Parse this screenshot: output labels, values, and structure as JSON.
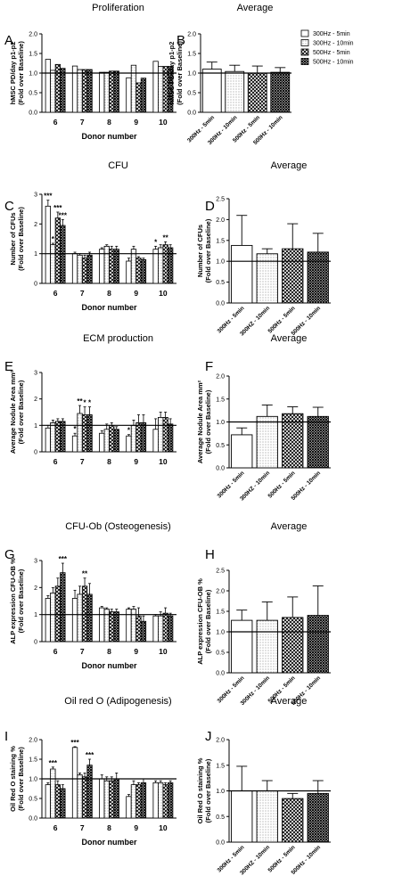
{
  "figure_title": "",
  "legend": [
    {
      "label": "300Hz - 5min",
      "pattern": "blank"
    },
    {
      "label": "300Hz - 10min",
      "pattern": "dots"
    },
    {
      "label": "500Hz - 5min",
      "pattern": "cross"
    },
    {
      "label": "500Hz - 10min",
      "pattern": "crossdense"
    }
  ],
  "chart_data": [
    {
      "panel": "A",
      "type": "bar",
      "title": "Proliferation",
      "ylabel": "hMSC PD/day p1-p2\n(Fold over Baseline)",
      "xlabel": "Donor number",
      "ylim": [
        0.0,
        2.0
      ],
      "yticks": [
        0.0,
        0.5,
        1.0,
        1.5,
        2.0
      ],
      "baseline": 1.0,
      "categories": [
        "6",
        "7",
        "8",
        "9",
        "10"
      ],
      "series": [
        {
          "name": "300Hz - 5min",
          "values": [
            1.35,
            1.18,
            1.02,
            0.88,
            1.3
          ],
          "errors": [
            0,
            0,
            0,
            0,
            0
          ]
        },
        {
          "name": "300Hz - 10min",
          "values": [
            1.07,
            1.09,
            1.02,
            1.2,
            1.17
          ],
          "errors": [
            0,
            0,
            0,
            0,
            0
          ]
        },
        {
          "name": "500Hz - 5min",
          "values": [
            1.22,
            1.09,
            1.05,
            0.75,
            1.17
          ],
          "errors": [
            0,
            0,
            0,
            0,
            0
          ]
        },
        {
          "name": "500Hz - 10min",
          "values": [
            1.12,
            1.09,
            1.05,
            0.87,
            1.17
          ],
          "errors": [
            0,
            0,
            0,
            0,
            0
          ]
        }
      ],
      "annotations": []
    },
    {
      "panel": "B",
      "type": "bar",
      "title": "Average",
      "ylabel": "hMSC PD/day p1-p2\n(Fold over Baseline)",
      "xlabel": "",
      "ylim": [
        0.0,
        2.0
      ],
      "yticks": [
        0.0,
        0.5,
        1.0,
        1.5,
        2.0
      ],
      "baseline": 1.0,
      "categories": [
        "300Hz - 5min",
        "300Hz - 10min",
        "500Hz - 5min",
        "500Hz - 10min"
      ],
      "values": [
        1.1,
        1.04,
        1.0,
        1.02
      ],
      "errors": [
        0.18,
        0.16,
        0.18,
        0.12
      ],
      "annotations": []
    },
    {
      "panel": "C",
      "type": "bar",
      "title": "CFU",
      "ylabel": "Number of CFUs\n(Fold over Baseline)",
      "xlabel": "Donor number",
      "ylim": [
        0,
        3
      ],
      "yticks": [
        0,
        1,
        2,
        3
      ],
      "baseline": 1.0,
      "categories": [
        "6",
        "7",
        "8",
        "9",
        "10"
      ],
      "series": [
        {
          "name": "300Hz - 5min",
          "values": [
            2.6,
            1.0,
            1.15,
            0.75,
            1.15
          ],
          "errors": [
            0.2,
            0.05,
            0.05,
            0.1,
            0.1
          ]
        },
        {
          "name": "300Hz - 10min",
          "values": [
            1.3,
            0.95,
            1.25,
            1.15,
            1.2
          ],
          "errors": [
            0.05,
            0.05,
            0.05,
            0.1,
            0.1
          ]
        },
        {
          "name": "500Hz - 5min",
          "values": [
            2.2,
            0.85,
            1.15,
            0.85,
            1.3
          ],
          "errors": [
            0.2,
            0.1,
            0.1,
            0.05,
            0.1
          ]
        },
        {
          "name": "500Hz - 10min",
          "values": [
            1.95,
            0.95,
            1.15,
            0.8,
            1.2
          ],
          "errors": [
            0.2,
            0.1,
            0.1,
            0.05,
            0.1
          ]
        }
      ],
      "annotations": [
        {
          "group": 0,
          "bar": 0,
          "text": "***"
        },
        {
          "group": 0,
          "bar": 1,
          "text": "*"
        },
        {
          "group": 0,
          "bar": 2,
          "text": "***"
        },
        {
          "group": 0,
          "bar": 3,
          "text": "***"
        },
        {
          "group": 4,
          "bar": 0,
          "text": "*"
        },
        {
          "group": 4,
          "bar": 2,
          "text": "**"
        }
      ]
    },
    {
      "panel": "D",
      "type": "bar",
      "title": "Average",
      "ylabel": "Number of CFUs\n(Fold over Baseline)",
      "xlabel": "",
      "ylim": [
        0.0,
        2.5
      ],
      "yticks": [
        0.0,
        0.5,
        1.0,
        1.5,
        2.0,
        2.5
      ],
      "baseline": 1.0,
      "categories": [
        "300Hz - 5min",
        "300HZ - 10min",
        "500Hz - 5min",
        "500Hz - 10min"
      ],
      "values": [
        1.38,
        1.18,
        1.3,
        1.22
      ],
      "errors": [
        0.72,
        0.12,
        0.6,
        0.45
      ],
      "annotations": []
    },
    {
      "panel": "E",
      "type": "bar",
      "title": "ECM production",
      "ylabel": "Average Nodule Area mm²\n(Fold over Baseline)",
      "xlabel": "",
      "ylim": [
        0,
        3
      ],
      "yticks": [
        0,
        1,
        2,
        3
      ],
      "baseline": 1.0,
      "categories": [
        "6",
        "7",
        "8",
        "9",
        "10"
      ],
      "series": [
        {
          "name": "300Hz - 5min",
          "values": [
            0.9,
            0.6,
            0.7,
            0.6,
            0.85
          ],
          "errors": [
            0.1,
            0.1,
            0.1,
            0.05,
            0.4
          ]
        },
        {
          "name": "300Hz - 10min",
          "values": [
            1.1,
            1.45,
            0.85,
            1.0,
            1.3
          ],
          "errors": [
            0.1,
            0.3,
            0.2,
            0.2,
            0.2
          ]
        },
        {
          "name": "500Hz - 5min",
          "values": [
            1.15,
            1.4,
            1.0,
            1.1,
            1.3
          ],
          "errors": [
            0.1,
            0.3,
            0.1,
            0.3,
            0.2
          ]
        },
        {
          "name": "500Hz - 10min",
          "values": [
            1.15,
            1.4,
            0.85,
            1.1,
            1.05
          ],
          "errors": [
            0.1,
            0.3,
            0.1,
            0.3,
            0.2
          ]
        }
      ],
      "annotations": [
        {
          "group": 1,
          "bar": 0,
          "text": "*"
        },
        {
          "group": 1,
          "bar": 1,
          "text": "**"
        },
        {
          "group": 1,
          "bar": 2,
          "text": "*"
        },
        {
          "group": 1,
          "bar": 3,
          "text": "*"
        },
        {
          "group": 3,
          "bar": 0,
          "text": "*"
        }
      ]
    },
    {
      "panel": "F",
      "type": "bar",
      "title": "Average",
      "ylabel": "Average Nodule Area mm²\n(Fold over Baseline)",
      "xlabel": "",
      "ylim": [
        0.0,
        2.0
      ],
      "yticks": [
        0.0,
        0.5,
        1.0,
        1.5,
        2.0
      ],
      "baseline": 1.0,
      "categories": [
        "300Hz - 5min",
        "300HZ - 10min",
        "500Hz - 5min",
        "500Hz - 10min"
      ],
      "values": [
        0.72,
        1.12,
        1.18,
        1.12
      ],
      "errors": [
        0.15,
        0.25,
        0.15,
        0.2
      ],
      "annotations": []
    },
    {
      "panel": "G",
      "type": "bar",
      "title": "CFU-Ob (Osteogenesis)",
      "ylabel": "ALP expression CFU-OB %\n(Fold over Baseline)",
      "xlabel": "Donor number",
      "ylim": [
        0,
        3
      ],
      "yticks": [
        0,
        1,
        2,
        3
      ],
      "baseline": 1.0,
      "categories": [
        "6",
        "7",
        "8",
        "9",
        "10"
      ],
      "series": [
        {
          "name": "300Hz - 5min",
          "values": [
            1.6,
            1.6,
            1.25,
            1.2,
            0.95
          ],
          "errors": [
            0.1,
            0.3,
            0.05,
            0.05,
            0.05
          ]
        },
        {
          "name": "300Hz - 10min",
          "values": [
            1.8,
            1.75,
            1.2,
            1.2,
            0.95
          ],
          "errors": [
            0.2,
            0.3,
            0.05,
            0.1,
            0.15
          ]
        },
        {
          "name": "500Hz - 5min",
          "values": [
            2.05,
            2.05,
            1.1,
            0.95,
            1.05
          ],
          "errors": [
            0.3,
            0.3,
            0.1,
            0.3,
            0.2
          ]
        },
        {
          "name": "500Hz - 10min",
          "values": [
            2.55,
            1.75,
            1.1,
            0.75,
            0.95
          ],
          "errors": [
            0.35,
            0.4,
            0.1,
            0.2,
            0.1
          ]
        }
      ],
      "annotations": [
        {
          "group": 0,
          "bar": 3,
          "text": "***"
        },
        {
          "group": 1,
          "bar": 2,
          "text": "**"
        }
      ]
    },
    {
      "panel": "H",
      "type": "bar",
      "title": "Average",
      "ylabel": "ALP expression CFU-OB %\n(Fold over Baseline)",
      "xlabel": "",
      "ylim": [
        0.0,
        2.5
      ],
      "yticks": [
        0.0,
        0.5,
        1.0,
        1.5,
        2.0,
        2.5
      ],
      "baseline": 1.0,
      "categories": [
        "300Hz - 5min",
        "300Hz - 10min",
        "500Hz - 5min",
        "500Hz - 10min"
      ],
      "values": [
        1.28,
        1.28,
        1.35,
        1.4
      ],
      "errors": [
        0.25,
        0.45,
        0.5,
        0.72
      ],
      "annotations": []
    },
    {
      "panel": "I",
      "type": "bar",
      "title": "Oil red O (Adipogenesis)",
      "ylabel": "Oil Red O staining %\n(Fold over Baseline)",
      "xlabel": "Donor number",
      "ylim": [
        0.0,
        2.0
      ],
      "yticks": [
        0.0,
        0.5,
        1.0,
        1.5,
        2.0
      ],
      "baseline": 1.0,
      "categories": [
        "6",
        "7",
        "8",
        "9",
        "10"
      ],
      "series": [
        {
          "name": "300Hz - 5min",
          "values": [
            0.85,
            1.8,
            1.0,
            0.55,
            0.9
          ],
          "errors": [
            0.05,
            0.02,
            0.1,
            0.05,
            0.05
          ]
        },
        {
          "name": "300Hz - 10min",
          "values": [
            1.25,
            1.1,
            0.95,
            0.85,
            0.9
          ],
          "errors": [
            0.05,
            0.05,
            0.1,
            0.1,
            0.05
          ]
        },
        {
          "name": "500Hz - 5min",
          "values": [
            0.85,
            1.05,
            0.95,
            0.85,
            0.85
          ],
          "errors": [
            0.1,
            0.1,
            0.1,
            0.05,
            0.05
          ]
        },
        {
          "name": "500Hz - 10min",
          "values": [
            0.75,
            1.35,
            1.0,
            0.9,
            0.9
          ],
          "errors": [
            0.1,
            0.15,
            0.15,
            0.1,
            0.05
          ]
        }
      ],
      "annotations": [
        {
          "group": 0,
          "bar": 1,
          "text": "***"
        },
        {
          "group": 1,
          "bar": 0,
          "text": "***"
        },
        {
          "group": 1,
          "bar": 3,
          "text": "***"
        }
      ]
    },
    {
      "panel": "J",
      "type": "bar",
      "title": "Average",
      "ylabel": "Oil Red O staining %\n(Fold over Baseline)",
      "xlabel": "",
      "ylim": [
        0.0,
        2.0
      ],
      "yticks": [
        0.0,
        0.5,
        1.0,
        1.5,
        2.0
      ],
      "baseline": 1.0,
      "categories": [
        "300Hz - 5min",
        "300HZ - 10min",
        "500Hz - 5min",
        "500Hz - 10min"
      ],
      "values": [
        1.0,
        1.0,
        0.85,
        0.95
      ],
      "errors": [
        0.48,
        0.2,
        0.1,
        0.25
      ],
      "annotations": []
    }
  ]
}
